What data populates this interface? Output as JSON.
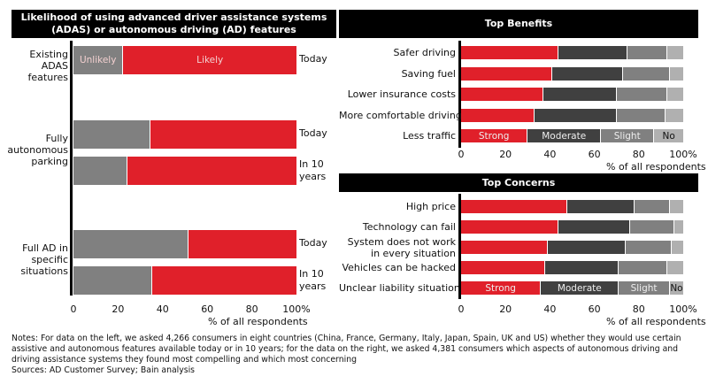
{
  "chart_data": [
    {
      "type": "bar",
      "orientation": "horizontal",
      "stacked": true,
      "title": "Likelihood of using advanced driver assistance systems (ADAS) or autonomous driving (AD) features",
      "xlabel": "% of all respondents",
      "xlim": [
        0,
        100
      ],
      "xticks": [
        "0",
        "20",
        "40",
        "60",
        "80",
        "100%"
      ],
      "colors": {
        "Unlikely": "#808080",
        "Likely": "#e0202a"
      },
      "groups": [
        {
          "label": "Existing ADAS features",
          "bars": [
            {
              "period": "Today",
              "Unlikely": 22,
              "Likely": 78
            }
          ]
        },
        {
          "label": "Fully autonomous parking",
          "bars": [
            {
              "period": "Today",
              "Unlikely": 34,
              "Likely": 66
            },
            {
              "period": "In 10 years",
              "Unlikely": 24,
              "Likely": 76
            }
          ]
        },
        {
          "label": "Full AD in specific situations",
          "bars": [
            {
              "period": "Today",
              "Unlikely": 51,
              "Likely": 49
            },
            {
              "period": "In 10 years",
              "Unlikely": 35,
              "Likely": 65
            }
          ]
        }
      ],
      "segment_labels": [
        "Unlikely",
        "Likely"
      ]
    },
    {
      "type": "bar",
      "orientation": "horizontal",
      "stacked": true,
      "title": "Top Benefits",
      "xlabel": "% of all respondents",
      "xlim": [
        0,
        100
      ],
      "xticks": [
        "0",
        "20",
        "40",
        "60",
        "80",
        "100%"
      ],
      "series_names": [
        "Strong",
        "Moderate",
        "Slight",
        "No"
      ],
      "colors": [
        "#e0202a",
        "#404040",
        "#808080",
        "#b0b0b0"
      ],
      "categories": [
        "Safer driving",
        "Saving fuel",
        "Lower insurance costs",
        "More comfortable driving",
        "Less traffic"
      ],
      "values": [
        [
          44,
          31,
          18,
          7
        ],
        [
          41,
          32,
          21,
          6
        ],
        [
          37,
          33,
          23,
          7
        ],
        [
          33,
          37,
          22,
          8
        ],
        [
          30,
          33,
          24,
          13
        ]
      ]
    },
    {
      "type": "bar",
      "orientation": "horizontal",
      "stacked": true,
      "title": "Top Concerns",
      "xlabel": "% of all respondents",
      "xlim": [
        0,
        100
      ],
      "xticks": [
        "0",
        "20",
        "40",
        "60",
        "80",
        "100%"
      ],
      "series_names": [
        "Strong",
        "Moderate",
        "Slight",
        "No"
      ],
      "colors": [
        "#e0202a",
        "#404040",
        "#808080",
        "#b0b0b0"
      ],
      "categories": [
        "High price",
        "Technology can fail",
        "System does not work in every situation",
        "Vehicles can be hacked",
        "Unclear liability situation"
      ],
      "values": [
        [
          48,
          30,
          16,
          6
        ],
        [
          44,
          32,
          20,
          4
        ],
        [
          39,
          35,
          21,
          5
        ],
        [
          38,
          33,
          22,
          7
        ],
        [
          36,
          35,
          23,
          6
        ]
      ]
    }
  ],
  "notes": "Notes: For data on the left, we asked 4,266 consumers in eight countries (China, France, Germany, Italy, Japan, Spain, UK and US) whether they would use certain assistive and autonomous features available today or in 10 years; for the data on the right, we asked 4,381 consumers which aspects of autonomous driving and driving assistance systems they found most compelling and which most concerning",
  "sources": "Sources: AD Customer Survey; Bain analysis"
}
